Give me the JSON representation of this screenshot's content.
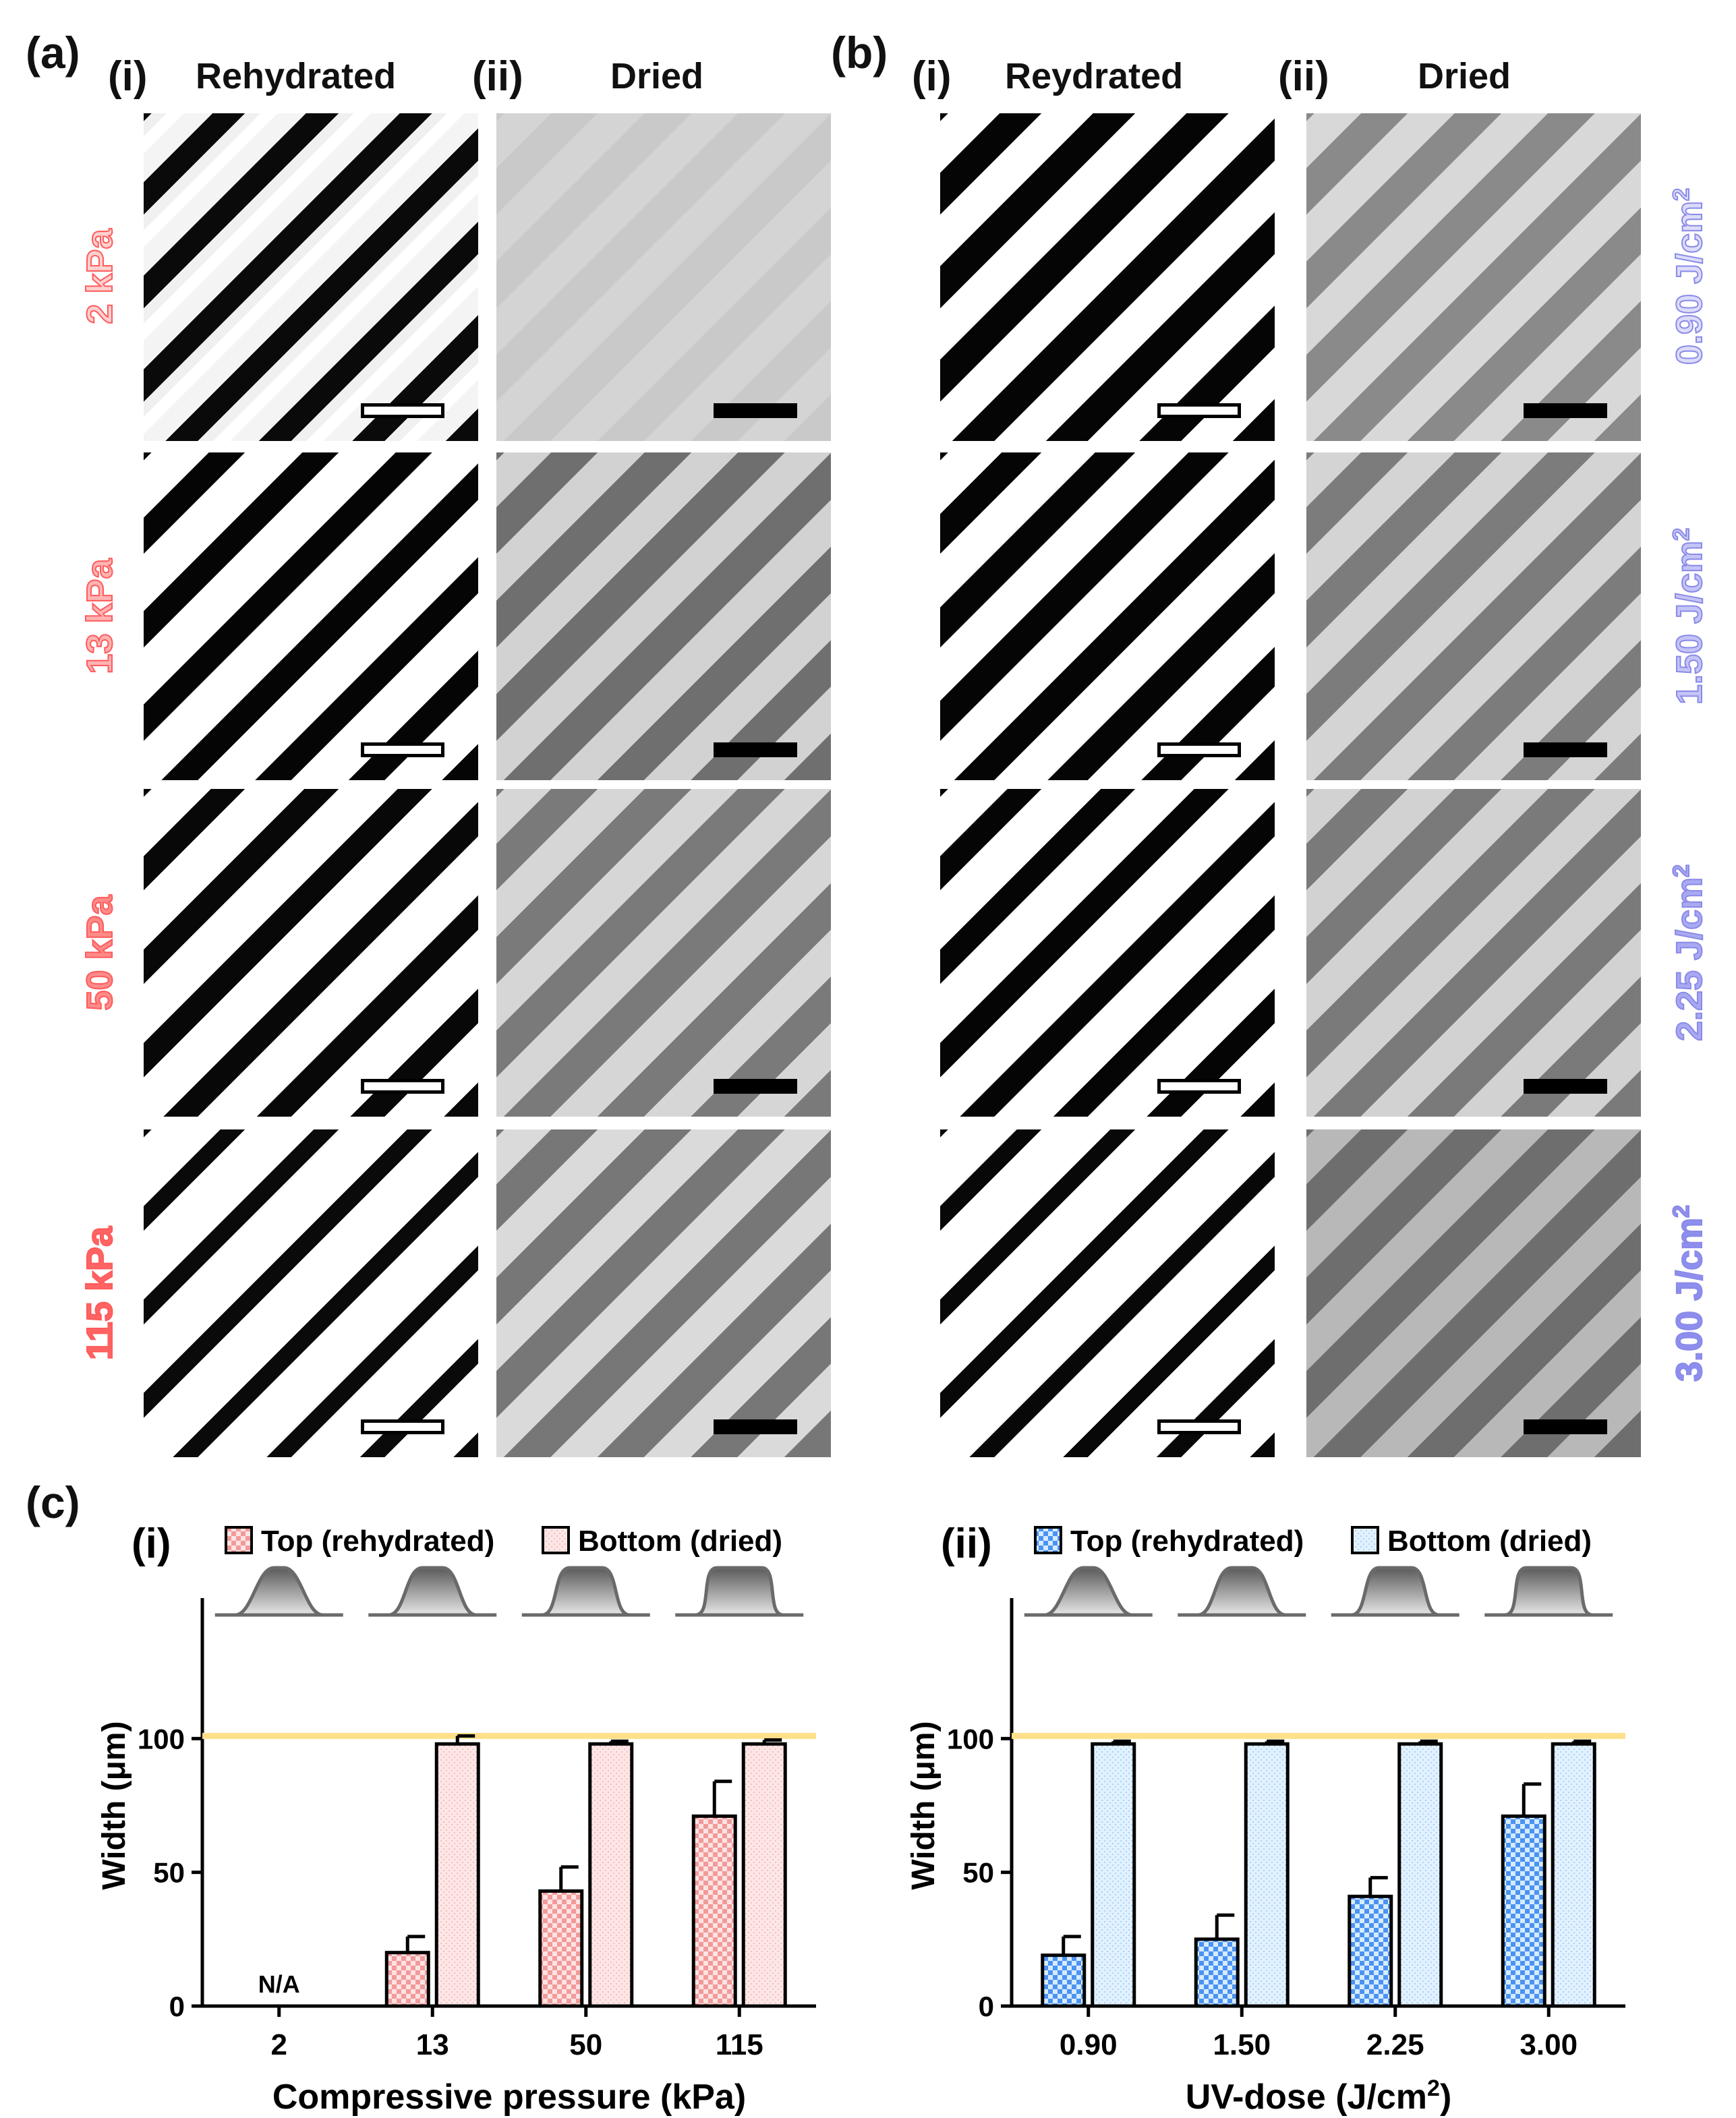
{
  "panel_a": {
    "letter": "(a)",
    "col1_roman": "(i)",
    "col1_title": "Rehydrated",
    "col2_roman": "(ii)",
    "col2_title": "Dried",
    "rows": [
      "2 kPa",
      "13 kPa",
      "50 kPa",
      "115 kPa"
    ]
  },
  "panel_b": {
    "letter": "(b)",
    "col1_roman": "(i)",
    "col1_title": "Reydrated",
    "col2_roman": "(ii)",
    "col2_title": "Dried",
    "rows": [
      {
        "value": "0.90 J/cm",
        "sup": "2"
      },
      {
        "value": "1.50 J/cm",
        "sup": "2"
      },
      {
        "value": "2.25 J/cm",
        "sup": "2"
      },
      {
        "value": "3.00 J/cm",
        "sup": "2"
      }
    ]
  },
  "panel_c": {
    "letter": "(c)",
    "colors": {
      "red_fill": "#fde1e1",
      "red_edge": "#f08080",
      "blue_fill": "#dbeeff",
      "blue_edge": "#3a88ff",
      "ref_line": "#ffe08a"
    },
    "chart_data": [
      {
        "type": "bar",
        "roman": "(i)",
        "legend": [
          "Top (rehydrated)",
          "Bottom (dried)"
        ],
        "categories": [
          "2",
          "13",
          "50",
          "115"
        ],
        "series": [
          {
            "name": "Top (rehydrated)",
            "values": [
              null,
              20,
              43,
              71
            ],
            "errors": [
              null,
              6,
              9,
              13
            ]
          },
          {
            "name": "Bottom (dried)",
            "values": [
              null,
              98,
              98,
              98
            ],
            "errors": [
              null,
              3,
              1,
              1.5
            ]
          }
        ],
        "annotations": [
          "N/A"
        ],
        "xlabel": "Compressive pressure (kPa)",
        "ylabel": "Width (μm)",
        "ylim": [
          0,
          150
        ],
        "yticks": [
          "0",
          "50",
          "100"
        ],
        "reference_line": 101
      },
      {
        "type": "bar",
        "roman": "(ii)",
        "legend": [
          "Top (rehydrated)",
          "Bottom (dried)"
        ],
        "categories": [
          "0.90",
          "1.50",
          "2.25",
          "3.00"
        ],
        "series": [
          {
            "name": "Top (rehydrated)",
            "values": [
              19,
              25,
              41,
              71
            ],
            "errors": [
              7,
              9,
              7,
              12
            ]
          },
          {
            "name": "Bottom (dried)",
            "values": [
              98,
              98,
              98,
              98
            ],
            "errors": [
              1,
              1,
              1,
              1
            ]
          }
        ],
        "xlabel": "UV-dose (J/cm",
        "xlabel_sup": "2",
        "xlabel_end": ")",
        "ylabel": "Width (μm)",
        "ylim": [
          0,
          150
        ],
        "yticks": [
          "0",
          "50",
          "100"
        ],
        "reference_line": 101
      }
    ]
  }
}
